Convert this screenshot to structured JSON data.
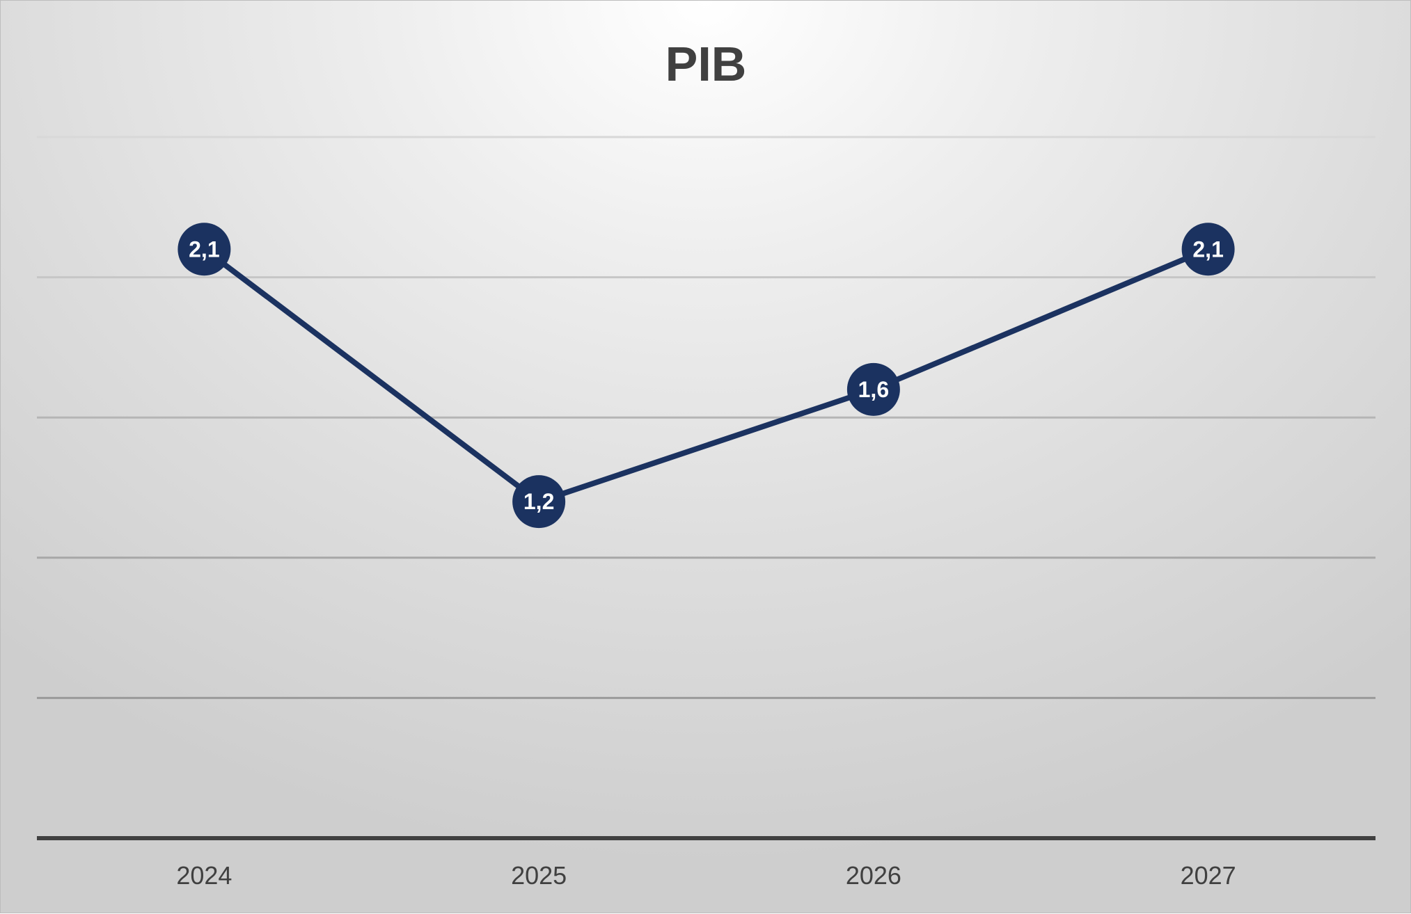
{
  "chart_data": {
    "type": "line",
    "title": "PIB",
    "xlabel": "",
    "ylabel": "",
    "categories": [
      "2024",
      "2025",
      "2026",
      "2027"
    ],
    "series": [
      {
        "values": [
          2.1,
          1.2,
          1.6,
          2.1
        ],
        "data_labels": [
          "2,1",
          "1,2",
          "1,6",
          "2,1"
        ]
      }
    ],
    "ylim": [
      0,
      2.5
    ],
    "gridlines": [
      0.5,
      1.0,
      1.5,
      2.0,
      2.5
    ],
    "grid": true,
    "legend": "none",
    "colors": {
      "line": "#1b3260",
      "marker": "#1b3260",
      "label": "#ffffff",
      "axis": "#404040"
    }
  }
}
